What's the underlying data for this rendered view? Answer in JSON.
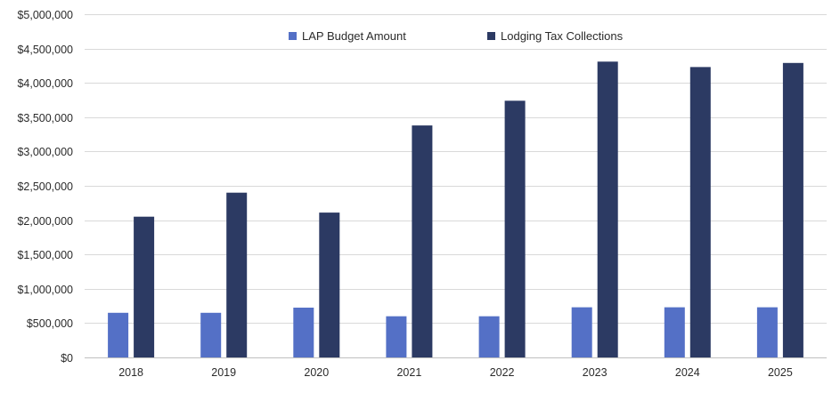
{
  "chart_data": {
    "type": "bar",
    "title": "",
    "xlabel": "",
    "ylabel": "",
    "ylim": [
      0,
      5000000
    ],
    "yticks": [
      0,
      500000,
      1000000,
      1500000,
      2000000,
      2500000,
      3000000,
      3500000,
      4000000,
      4500000,
      5000000
    ],
    "ytick_labels": [
      "$0",
      "$500,000",
      "$1,000,000",
      "$1,500,000",
      "$2,000,000",
      "$2,500,000",
      "$3,000,000",
      "$3,500,000",
      "$4,000,000",
      "$4,500,000",
      "$5,000,000"
    ],
    "grid": true,
    "legend_position": "top-center",
    "categories": [
      "2018",
      "2019",
      "2020",
      "2021",
      "2022",
      "2023",
      "2024",
      "2025"
    ],
    "series": [
      {
        "name": "LAP Budget Amount",
        "color": "#5470c6",
        "values": [
          650000,
          650000,
          725000,
          600000,
          600000,
          730000,
          730000,
          730000
        ]
      },
      {
        "name": "Lodging Tax Collections",
        "color": "#2c3a63",
        "values": [
          2050000,
          2400000,
          2110000,
          3380000,
          3740000,
          4310000,
          4230000,
          4290000
        ]
      }
    ]
  }
}
